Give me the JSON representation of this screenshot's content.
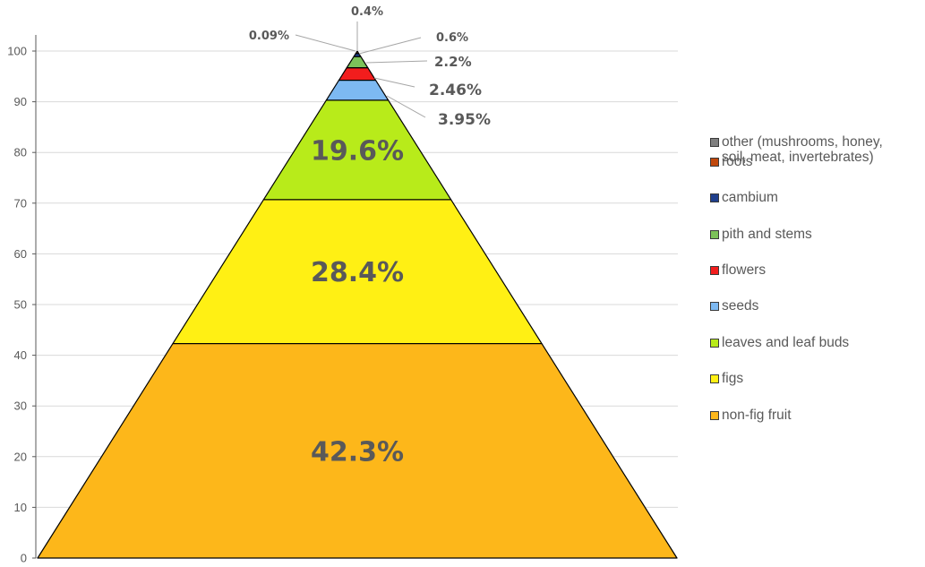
{
  "chart_data": {
    "type": "pyramid",
    "ylim": [
      0,
      100
    ],
    "yticks": [
      0,
      10,
      20,
      30,
      40,
      50,
      60,
      70,
      80,
      90,
      100
    ],
    "grid": true,
    "legend_position": "right",
    "segments": [
      {
        "name": "non-fig fruit",
        "value": 42.3,
        "label": "42.3%",
        "color": "#FDB71A"
      },
      {
        "name": "figs",
        "value": 28.4,
        "label": "28.4%",
        "color": "#FFF014"
      },
      {
        "name": "leaves and leaf buds",
        "value": 19.6,
        "label": "19.6%",
        "color": "#B8EB1A"
      },
      {
        "name": "seeds",
        "value": 3.95,
        "label": "3.95%",
        "color": "#7DB9F2"
      },
      {
        "name": "flowers",
        "value": 2.46,
        "label": "2.46%",
        "color": "#F21D1D"
      },
      {
        "name": "pith and stems",
        "value": 2.2,
        "label": "2.2%",
        "color": "#7CC259"
      },
      {
        "name": "cambium",
        "value": 0.6,
        "label": "0.6%",
        "color": "#1F3F8C"
      },
      {
        "name": "roots",
        "value": 0.4,
        "label": "0.4%",
        "color": "#C0480C"
      },
      {
        "name": "other (mushrooms, honey, soil, meat, invertebrates)",
        "value": 0.09,
        "label": "0.09%",
        "color": "#7F7F7F"
      }
    ],
    "legend": [
      {
        "label": "other (mushrooms, honey,\nsoil, meat, invertebrates)",
        "color": "#7F7F7F"
      },
      {
        "label": "roots",
        "color": "#C0480C"
      },
      {
        "label": "cambium",
        "color": "#1F3F8C"
      },
      {
        "label": "pith and stems",
        "color": "#7CC259"
      },
      {
        "label": "flowers",
        "color": "#F21D1D"
      },
      {
        "label": "seeds",
        "color": "#7DB9F2"
      },
      {
        "label": "leaves and leaf buds",
        "color": "#B8EB1A"
      },
      {
        "label": "figs",
        "color": "#FFF014"
      },
      {
        "label": "non-fig fruit",
        "color": "#FDB71A"
      }
    ]
  }
}
